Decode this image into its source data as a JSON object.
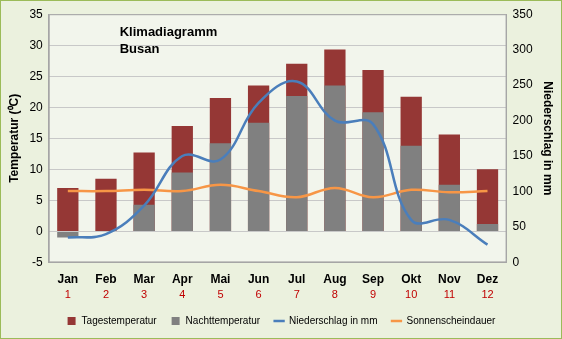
{
  "chart_data": {
    "type": "bar",
    "title": "Klimadiagramm",
    "subtitle": "Busan",
    "y_label": "Temperatur (⁰C)",
    "y2_label": "Niederschlag in mm",
    "categories": [
      "Jan",
      "Feb",
      "Mar",
      "Apr",
      "Mai",
      "Jun",
      "Jul",
      "Aug",
      "Sep",
      "Okt",
      "Nov",
      "Dez"
    ],
    "category_numbers": [
      1,
      2,
      3,
      4,
      5,
      6,
      7,
      8,
      9,
      10,
      11,
      12
    ],
    "ylim": [
      -5,
      35
    ],
    "yticks": [
      -5,
      0,
      5,
      10,
      15,
      20,
      25,
      30,
      35
    ],
    "y2lim": [
      0,
      350
    ],
    "y2ticks": [
      0,
      50,
      100,
      150,
      200,
      250,
      300,
      350
    ],
    "grid": true,
    "legend": "bottom",
    "series": [
      {
        "name": "Tagestemperatur",
        "type": "bar",
        "color": "#953735",
        "values": [
          7,
          8.5,
          12.7,
          17,
          21.5,
          23.5,
          27,
          29.3,
          26,
          21.7,
          15.6,
          10
        ]
      },
      {
        "name": "Nachttemperatur",
        "type": "bar",
        "color": "#808080",
        "values": [
          -1,
          0,
          4.3,
          9.5,
          14.2,
          17.5,
          21.8,
          23.5,
          19.2,
          13.8,
          7.5,
          1.2
        ]
      },
      {
        "name": "Niederschlag in mm",
        "type": "line",
        "color": "#4a7ebb",
        "axis": "y2",
        "marker": "none",
        "values": [
          35,
          40,
          80,
          150,
          145,
          225,
          255,
          200,
          195,
          60,
          60,
          25
        ]
      },
      {
        "name": "Sonnenscheindauer",
        "type": "line",
        "color": "#f79646",
        "marker": "none",
        "values": [
          6.5,
          6.5,
          6.7,
          6.5,
          7.5,
          6.5,
          5.5,
          7,
          5.5,
          6.7,
          6.3,
          6.5
        ]
      }
    ]
  }
}
